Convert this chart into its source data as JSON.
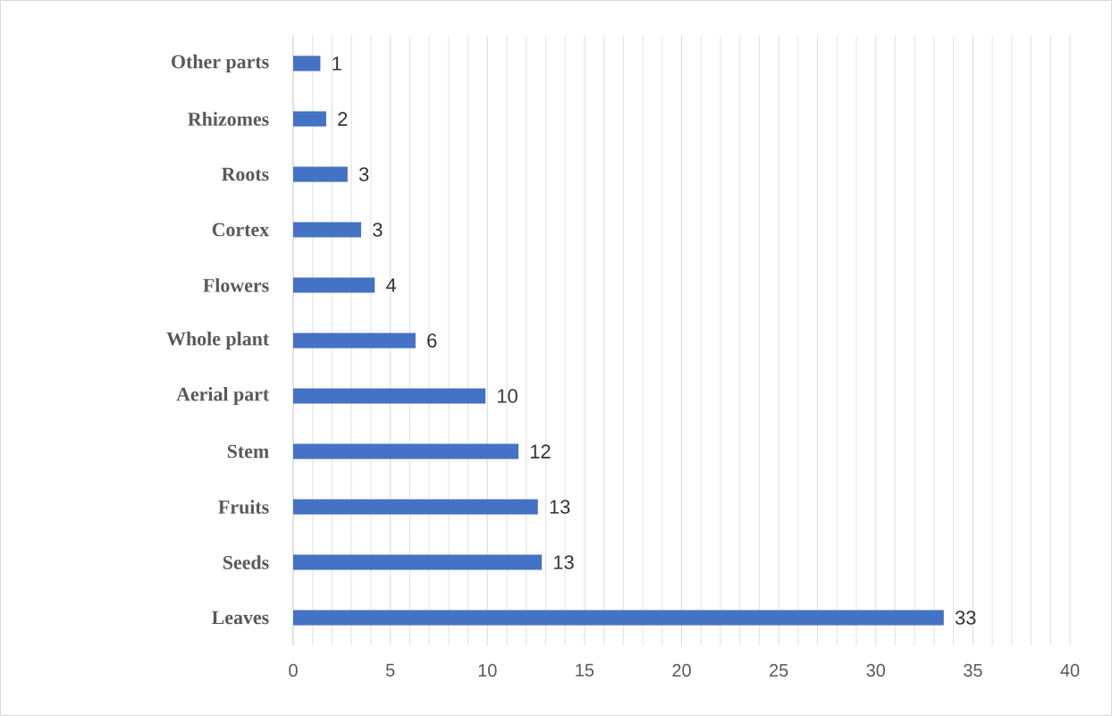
{
  "chart_data": {
    "type": "bar",
    "orientation": "horizontal",
    "categories": [
      "Other parts",
      "Rhizomes",
      "Roots",
      "Cortex",
      "Flowers",
      "Whole plant",
      "Aerial part",
      "Stem",
      "Fruits",
      "Seeds",
      "Leaves"
    ],
    "values": [
      1.4,
      1.7,
      2.8,
      3.5,
      4.2,
      6.3,
      9.9,
      11.6,
      12.6,
      12.8,
      33.5
    ],
    "value_labels": [
      "1",
      "2",
      "3",
      "3",
      "4",
      "6",
      "10",
      "12",
      "13",
      "13",
      "33"
    ],
    "color": "#4472c4",
    "xlim": [
      0,
      40
    ],
    "xticks": [
      0,
      5,
      10,
      15,
      20,
      25,
      30,
      35,
      40
    ],
    "grid": "x"
  }
}
